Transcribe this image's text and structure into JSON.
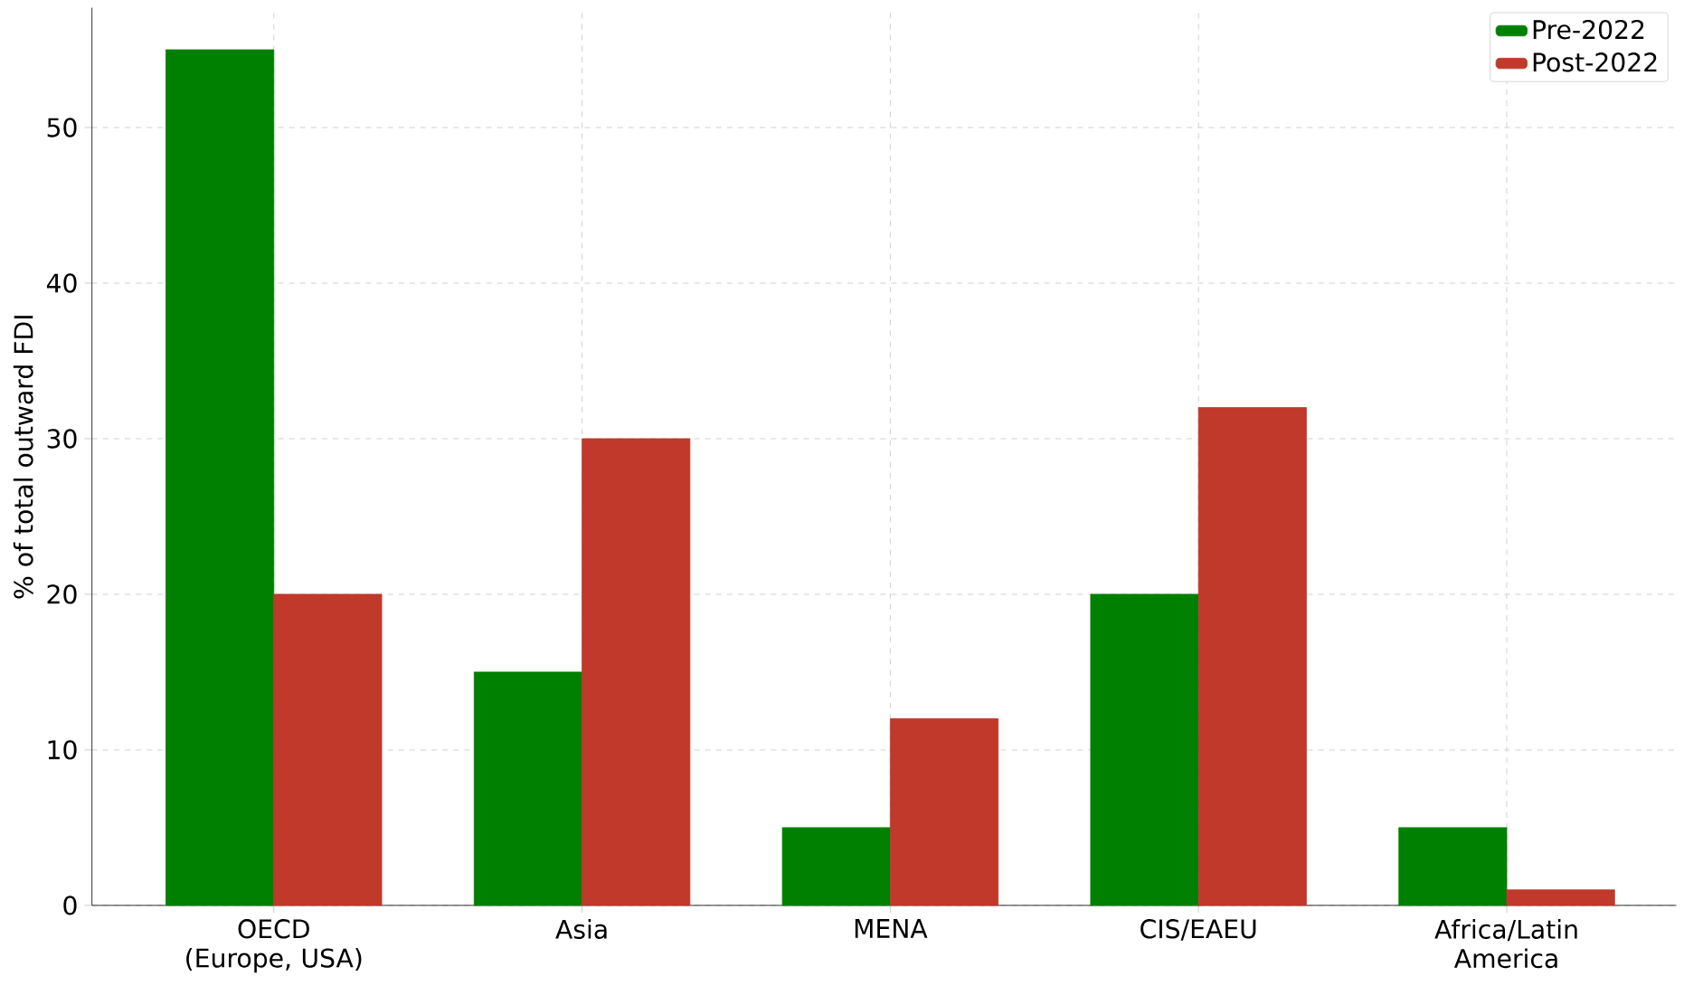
{
  "chart_data": {
    "type": "bar",
    "ylabel": "% of total outward FDI",
    "categories": [
      "OECD (Europe, USA)",
      "Asia",
      "MENA",
      "CIS/EAEU",
      "Africa/Latin America"
    ],
    "series": [
      {
        "name": "Pre-2022",
        "color": "#008000",
        "values": [
          55,
          15,
          5,
          20,
          5
        ]
      },
      {
        "name": "Post-2022",
        "color": "#c0392b",
        "values": [
          20,
          30,
          12,
          32,
          1
        ]
      }
    ],
    "ylim": [
      0,
      57.7
    ],
    "yticks": [
      0,
      10,
      20,
      30,
      40,
      50
    ],
    "grid": true,
    "legend": "top right"
  }
}
